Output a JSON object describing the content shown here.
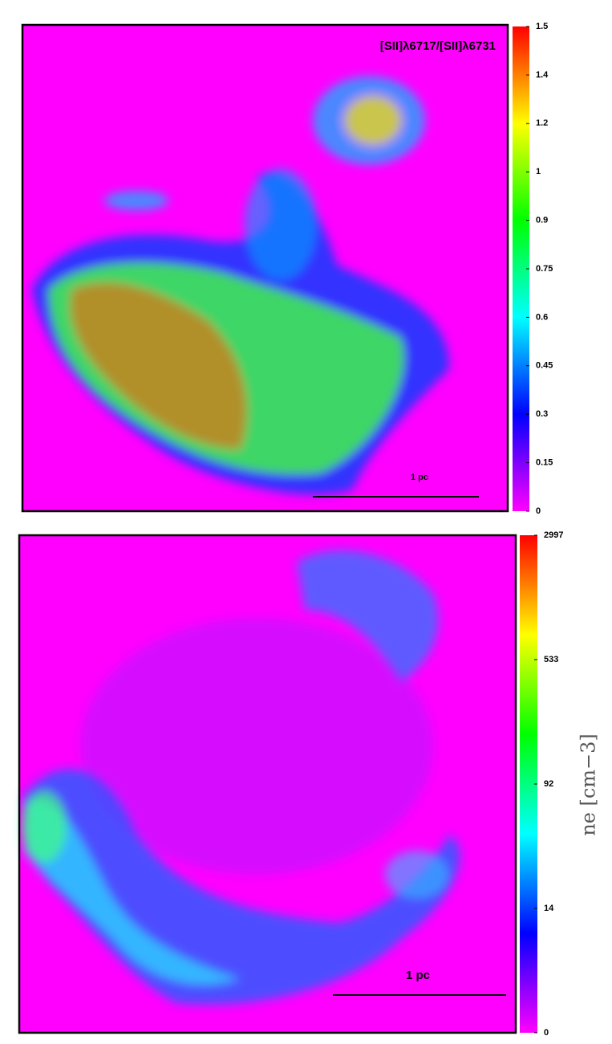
{
  "chart_data": [
    {
      "type": "heatmap",
      "title": "[SII]λ6717/[SII]λ6731",
      "annotation": "1 pc",
      "clim": [
        0,
        1.5
      ],
      "cticks": [
        0,
        0.15,
        0.3,
        0.45,
        0.6,
        0.75,
        0.9,
        1,
        1.2,
        1.4,
        1.5
      ],
      "colormap": [
        "#ff00ff",
        "#0000ff",
        "#00ffff",
        "#00ff00",
        "#ffff00",
        "#ff0000"
      ]
    },
    {
      "type": "heatmap",
      "annotation": "1 pc",
      "colorbar_label": "ne [cm−3]",
      "clim": [
        0,
        2997
      ],
      "cticks": [
        0,
        14,
        92,
        533,
        2997
      ],
      "colormap": [
        "#ff00ff",
        "#0000ff",
        "#00ffff",
        "#00ff00",
        "#ffff00",
        "#ff0000"
      ]
    }
  ]
}
